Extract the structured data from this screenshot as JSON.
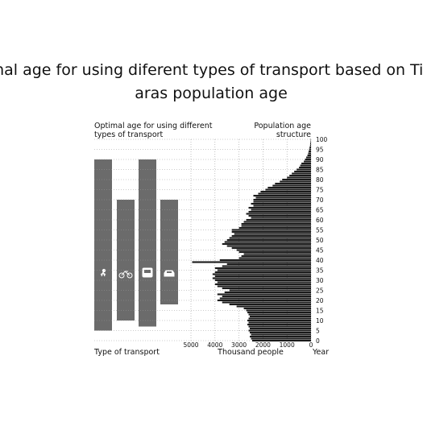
{
  "chart_data": {
    "type": "bar",
    "title_lines": [
      "mal age for using diferent types of transport based on Tin",
      "aras population age"
    ],
    "left_title_lines": [
      "Optimal age for using different",
      "types of transport"
    ],
    "right_title_lines": [
      "Population age",
      "structure"
    ],
    "left_axis_label": "Type of transport",
    "x_axis_label": "Thousand people",
    "y_axis_label": "Year",
    "color": "#1a1a1a",
    "transport_color": "#6b6b6b",
    "transport": [
      {
        "start": 5,
        "end": 90
      },
      {
        "start": 10,
        "end": 70
      },
      {
        "start": 7,
        "end": 90
      },
      {
        "start": 18,
        "end": 70
      }
    ],
    "ages": [
      0,
      1,
      2,
      3,
      4,
      5,
      6,
      7,
      8,
      9,
      10,
      11,
      12,
      13,
      14,
      15,
      16,
      17,
      18,
      19,
      20,
      21,
      22,
      23,
      24,
      25,
      26,
      27,
      28,
      29,
      30,
      31,
      32,
      33,
      34,
      35,
      36,
      37,
      38,
      39,
      40,
      41,
      42,
      43,
      44,
      45,
      46,
      47,
      48,
      49,
      50,
      51,
      52,
      53,
      54,
      55,
      56,
      57,
      58,
      59,
      60,
      61,
      62,
      63,
      64,
      65,
      66,
      67,
      68,
      69,
      70,
      71,
      72,
      73,
      74,
      75,
      76,
      77,
      78,
      79,
      80,
      81,
      82,
      83,
      84,
      85,
      86,
      87,
      88,
      89,
      90,
      91,
      92,
      93,
      94,
      95,
      96,
      97,
      98,
      99,
      100
    ],
    "values": [
      2450,
      2500,
      2550,
      2500,
      2550,
      2600,
      2550,
      2600,
      2650,
      2600,
      2650,
      2600,
      2550,
      2600,
      2650,
      2700,
      2800,
      3100,
      3400,
      3700,
      3900,
      3800,
      3700,
      3900,
      3600,
      3400,
      3700,
      3900,
      4000,
      3900,
      4000,
      4100,
      4000,
      4100,
      4000,
      3900,
      4000,
      3700,
      3500,
      4950,
      3800,
      3000,
      2900,
      2800,
      3000,
      3100,
      3300,
      3500,
      3700,
      3600,
      3500,
      3400,
      3300,
      3200,
      3300,
      3300,
      3000,
      2900,
      2900,
      2800,
      2700,
      2500,
      2600,
      2700,
      2600,
      2500,
      2600,
      2400,
      2500,
      2400,
      2400,
      2300,
      2400,
      2200,
      2100,
      1900,
      1800,
      1600,
      1500,
      1300,
      1200,
      1000,
      900,
      800,
      700,
      600,
      500,
      450,
      400,
      300,
      250,
      200,
      150,
      120,
      100,
      80,
      60,
      40,
      30,
      20,
      10
    ],
    "xlim": [
      5000,
      0
    ],
    "xticks": [
      5000,
      4000,
      3000,
      2000,
      1000,
      0
    ],
    "ylim": [
      0,
      100
    ],
    "yticks": [
      0,
      5,
      10,
      15,
      20,
      25,
      30,
      35,
      40,
      45,
      50,
      55,
      60,
      65,
      70,
      75,
      80,
      85,
      90,
      95,
      100
    ],
    "grid": true
  }
}
